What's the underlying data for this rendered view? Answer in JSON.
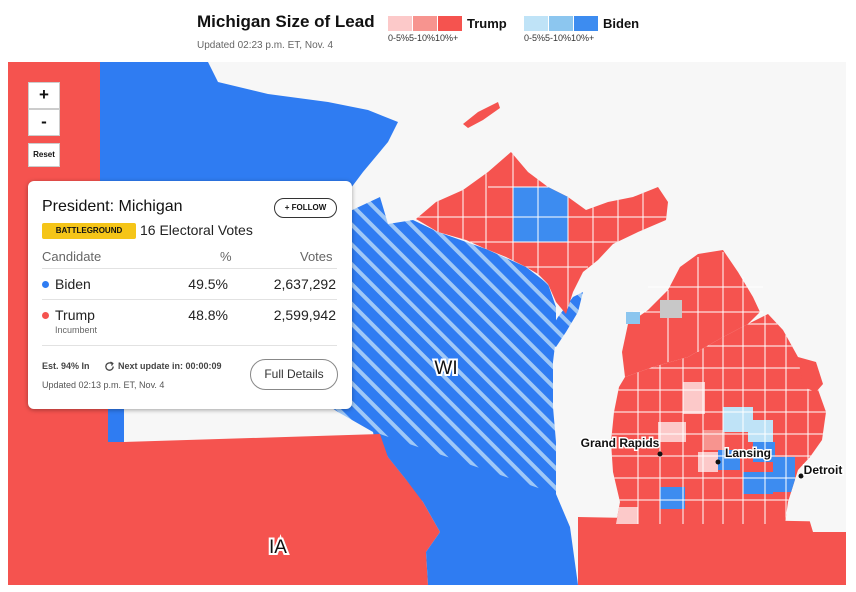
{
  "header": {
    "title": "Michigan Size of Lead",
    "updated": "Updated 02:23 p.m. ET, Nov. 4"
  },
  "legend": {
    "trump": {
      "name": "Trump",
      "tick1": "0-5%",
      "tick2": "5-10%",
      "tick3": "10%+",
      "colors": [
        "#fcc9c9",
        "#f7948f",
        "#f5534f"
      ]
    },
    "biden": {
      "name": "Biden",
      "tick1": "0-5%",
      "tick2": "5-10%",
      "tick3": "10%+",
      "colors": [
        "#bfe3f7",
        "#8cc6ef",
        "#3d8cf0"
      ]
    }
  },
  "map": {
    "state_labels": {
      "wi": "WI",
      "ia": "IA"
    },
    "cities": {
      "grand_rapids": "Grand Rapids",
      "lansing": "Lansing",
      "detroit": "Detroit"
    },
    "colors": {
      "water": "#f7f7f7",
      "trump_state": "#f5534f",
      "biden_state": "#2f7cf2",
      "county_border": "#ffffff"
    }
  },
  "controls": {
    "zoom_in": "+",
    "zoom_out": "-",
    "reset": "Reset"
  },
  "card": {
    "title": "President: Michigan",
    "follow": "+ FOLLOW",
    "badge": "BATTLEGROUND",
    "electoral_votes": "16 Electoral Votes",
    "columns": {
      "candidate": "Candidate",
      "pct": "%",
      "votes": "Votes"
    },
    "candidates": [
      {
        "name": "Biden",
        "pct": "49.5%",
        "votes": "2,637,292",
        "color": "#2f7cf2",
        "note": ""
      },
      {
        "name": "Trump",
        "pct": "48.8%",
        "votes": "2,599,942",
        "color": "#f5534f",
        "note": "Incumbent"
      }
    ],
    "estimate": "Est. 94% In",
    "next_update": "Next update in: 00:00:09",
    "updated": "Updated 02:13 p.m. ET, Nov. 4",
    "details_button": "Full Details"
  }
}
